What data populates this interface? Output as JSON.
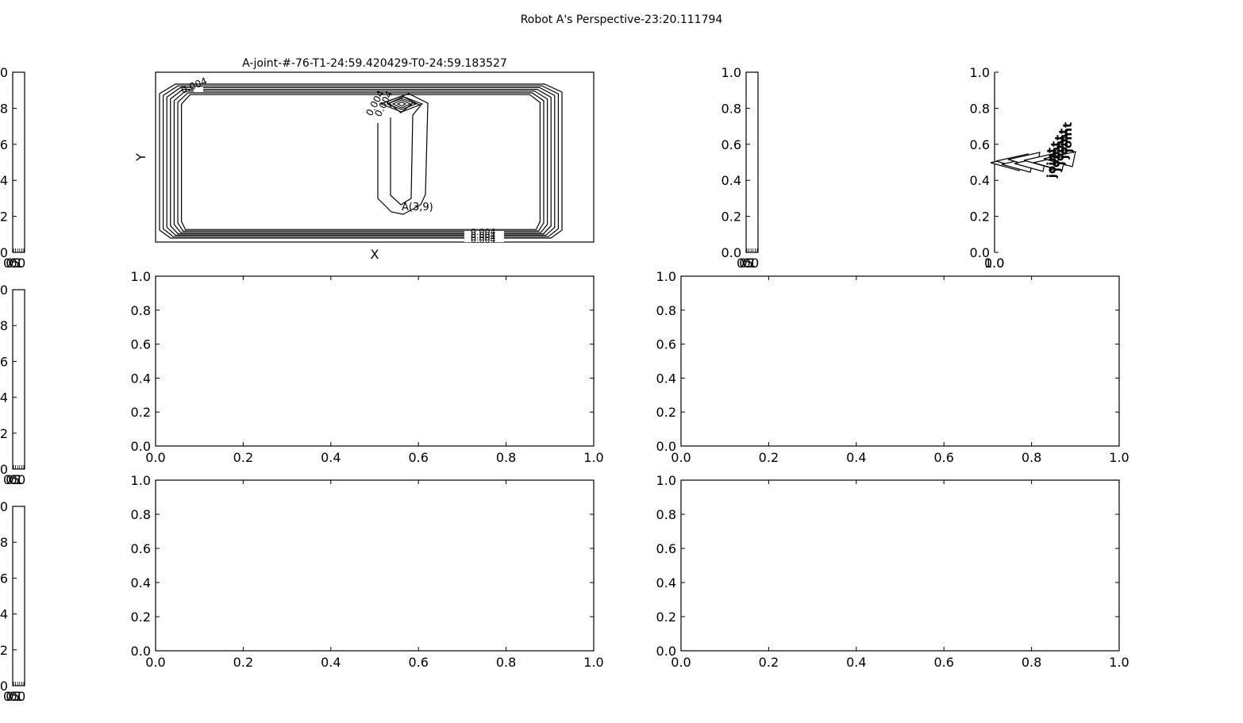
{
  "figure": {
    "suptitle": "Robot A's Perspective-23:20.111794"
  },
  "chart_data": [
    {
      "id": "contour",
      "type": "contour",
      "title": "A-joint-#-76-T1-24:59.420429-T0-24:59.183527",
      "xlabel": "X",
      "ylabel": "Y",
      "contour_labels": [
        "0.004",
        "0.004",
        "0.004",
        "0.004",
        "0.004",
        "0.004",
        "0.004"
      ],
      "annotation": "A(3,9)",
      "xticks": [],
      "yticks": []
    },
    {
      "id": "mid-right",
      "type": "line",
      "xlim": [
        0,
        1
      ],
      "ylim": [
        0,
        1
      ],
      "xticks": [
        "0.0",
        "0.2",
        "0.4",
        "0.6",
        "0.8",
        "1.0"
      ],
      "yticks": [
        "0.0",
        "0.2",
        "0.4",
        "0.6",
        "0.8",
        "1.0"
      ],
      "series": []
    },
    {
      "id": "mid-left",
      "type": "line",
      "xlim": [
        0,
        1
      ],
      "ylim": [
        0,
        1
      ],
      "xticks": [
        "0.0",
        "0.2",
        "0.4",
        "0.6",
        "0.8",
        "1.0"
      ],
      "yticks": [
        "0.0",
        "0.2",
        "0.4",
        "0.6",
        "0.8",
        "1.0"
      ],
      "series": []
    },
    {
      "id": "bottom-left",
      "type": "line",
      "xlim": [
        0,
        1
      ],
      "ylim": [
        0,
        1
      ],
      "xticks": [
        "0.0",
        "0.2",
        "0.4",
        "0.6",
        "0.8",
        "1.0"
      ],
      "yticks": [
        "0.0",
        "0.2",
        "0.4",
        "0.6",
        "0.8",
        "1.0"
      ],
      "series": []
    },
    {
      "id": "bottom-right",
      "type": "line",
      "xlim": [
        0,
        1
      ],
      "ylim": [
        0,
        1
      ],
      "xticks": [
        "0.0",
        "0.2",
        "0.4",
        "0.6",
        "0.8",
        "1.0"
      ],
      "yticks": [
        "0.0",
        "0.2",
        "0.4",
        "0.6",
        "0.8",
        "1.0"
      ],
      "series": []
    },
    {
      "id": "narrow-right",
      "type": "line",
      "ylim": [
        0,
        1
      ],
      "yticks": [
        "0.0",
        "0.2",
        "0.4",
        "0.6",
        "0.8",
        "1.0"
      ],
      "series": []
    },
    {
      "id": "joint-labels",
      "type": "scatter",
      "ylim": [
        0,
        1
      ],
      "yticks": [
        "0.0",
        "0.2",
        "0.4",
        "0.6",
        "0.8",
        "1.0"
      ],
      "annotations": [
        "joint",
        "joint",
        "joint",
        "joint",
        "joint"
      ],
      "series": []
    }
  ]
}
